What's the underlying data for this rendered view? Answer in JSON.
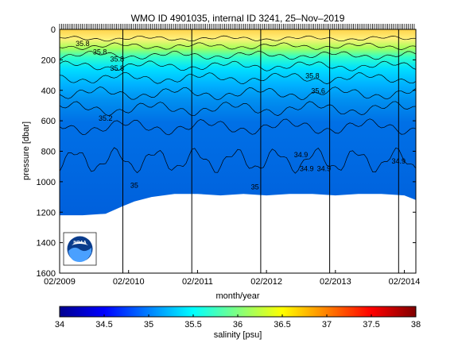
{
  "chart_data": [
    {
      "type": "heatmap",
      "title": "WMO ID 4901035, internal ID 3241, 25–Nov–2019",
      "xlabel": "month/year",
      "ylabel": "pressure [dbar]",
      "xlim": [
        "2009-02",
        "2014-04"
      ],
      "ylim": [
        0,
        1600
      ],
      "y_reversed": true,
      "grid": false,
      "x_ticks": [
        "02/2009",
        "02/2010",
        "02/2011",
        "02/2012",
        "02/2013",
        "02/2014"
      ],
      "y_ticks": [
        "0",
        "200",
        "400",
        "600",
        "800",
        "1000",
        "1200",
        "1400",
        "1600"
      ],
      "vertical_markers": [
        "2010-01",
        "2011-01",
        "2012-01",
        "2013-01",
        "2014-01"
      ],
      "contour_labels": [
        {
          "text": "35.8",
          "x": "2009-06",
          "y": 110
        },
        {
          "text": "35.8",
          "x": "2009-09",
          "y": 165
        },
        {
          "text": "35.8",
          "x": "2009-12",
          "y": 210
        },
        {
          "text": "35.8",
          "x": "2009-12",
          "y": 270
        },
        {
          "text": "35.8",
          "x": "2012-10",
          "y": 320
        },
        {
          "text": "35.6",
          "x": "2012-11",
          "y": 420
        },
        {
          "text": "35.2",
          "x": "2009-10",
          "y": 600
        },
        {
          "text": "34.9",
          "x": "2012-08",
          "y": 840
        },
        {
          "text": "34.9",
          "x": "2012-09",
          "y": 930
        },
        {
          "text": "34.9",
          "x": "2012-12",
          "y": 930
        },
        {
          "text": "34.9",
          "x": "2014-01",
          "y": 880
        },
        {
          "text": "35",
          "x": "2010-03",
          "y": 1040
        },
        {
          "text": "35",
          "x": "2011-12",
          "y": 1050
        }
      ],
      "profile_bottom_depths": [
        {
          "x": "2009-02",
          "y": 1220
        },
        {
          "x": "2009-06",
          "y": 1220
        },
        {
          "x": "2009-10",
          "y": 1210
        },
        {
          "x": "2010-01",
          "y": 1160
        },
        {
          "x": "2010-03",
          "y": 1130
        },
        {
          "x": "2010-06",
          "y": 1100
        },
        {
          "x": "2010-10",
          "y": 1080
        },
        {
          "x": "2011-02",
          "y": 1080
        },
        {
          "x": "2011-06",
          "y": 1090
        },
        {
          "x": "2011-10",
          "y": 1080
        },
        {
          "x": "2012-02",
          "y": 1090
        },
        {
          "x": "2012-06",
          "y": 1080
        },
        {
          "x": "2012-10",
          "y": 1080
        },
        {
          "x": "2013-02",
          "y": 1090
        },
        {
          "x": "2013-06",
          "y": 1080
        },
        {
          "x": "2013-10",
          "y": 1080
        },
        {
          "x": "2014-02",
          "y": 1090
        },
        {
          "x": "2014-04",
          "y": 1120
        }
      ]
    },
    {
      "type": "colorbar",
      "xlabel": "salinity [psu]",
      "range": [
        34,
        38
      ],
      "ticks": [
        "34",
        "34.5",
        "35",
        "35.5",
        "36",
        "36.5",
        "37",
        "37.5",
        "38"
      ],
      "colormap": [
        "#00008f",
        "#0000ff",
        "#0080ff",
        "#00ffff",
        "#80ff80",
        "#ffff00",
        "#ff8000",
        "#ff0000",
        "#800000"
      ]
    }
  ],
  "logo": {
    "icon": "noaa-logo-icon",
    "text": "NOAA"
  }
}
